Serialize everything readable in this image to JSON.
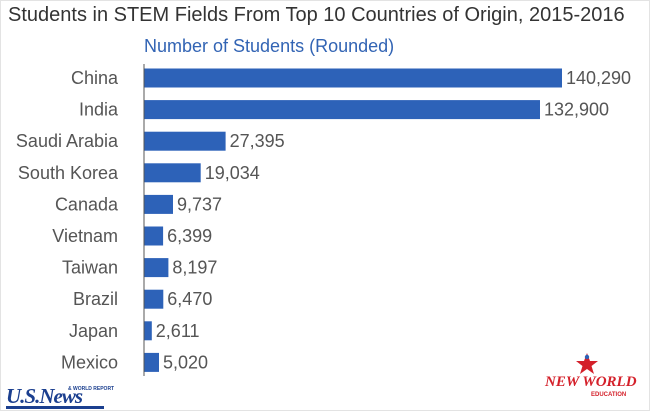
{
  "chart_data": {
    "type": "bar",
    "orientation": "horizontal",
    "title": "Students in STEM Fields From Top 10 Countries of Origin, 2015-2016",
    "subtitle": "Number of Students (Rounded)",
    "categories": [
      "China",
      "India",
      "Saudi Arabia",
      "South Korea",
      "Canada",
      "Vietnam",
      "Taiwan",
      "Brazil",
      "Japan",
      "Mexico"
    ],
    "values": [
      140290,
      132900,
      27395,
      19034,
      9737,
      6399,
      8197,
      6470,
      2611,
      5020
    ],
    "value_labels": [
      "140,290",
      "132,900",
      "27,395",
      "19,034",
      "9,737",
      "6,399",
      "8,197",
      "6,470",
      "2,611",
      "5,020"
    ],
    "xlim": [
      0,
      140290
    ],
    "grid": false,
    "bar_color": "#2d62b8"
  },
  "logos": {
    "usnews": {
      "text": "U.S.News",
      "subtext": "& WORLD REPORT",
      "color": "#1b3f8f"
    },
    "new_world_education": {
      "text": "NEW WORLD",
      "subtext": "EDUCATION",
      "color": "#d4202a"
    }
  },
  "colors": {
    "title": "#333333",
    "subtitle": "#3264b4",
    "axis": "#555555"
  }
}
